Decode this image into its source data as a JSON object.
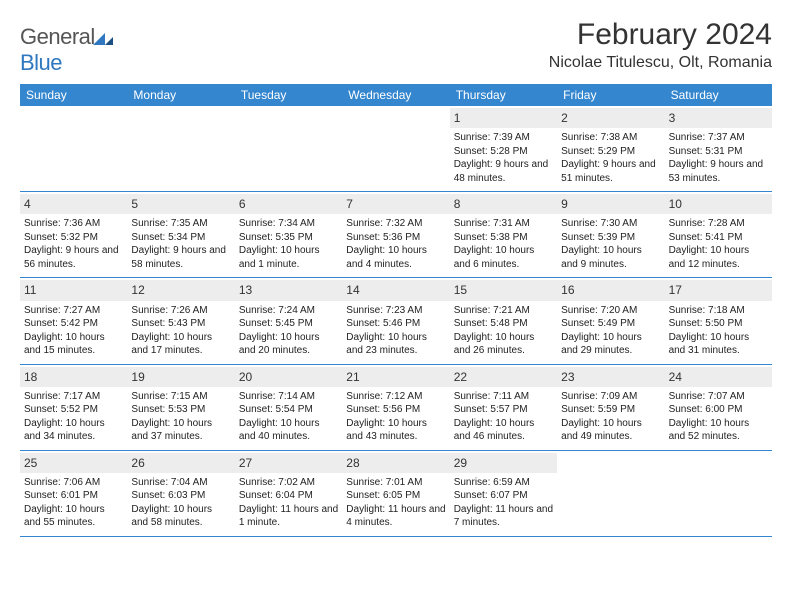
{
  "logo": {
    "part1": "General",
    "part2": "Blue"
  },
  "title": "February 2024",
  "location": "Nicolae Titulescu, Olt, Romania",
  "colors": {
    "header_bg": "#3486cf",
    "header_text": "#ffffff",
    "band_bg": "#ededed",
    "rule": "#3486cf"
  },
  "weekdays": [
    "Sunday",
    "Monday",
    "Tuesday",
    "Wednesday",
    "Thursday",
    "Friday",
    "Saturday"
  ],
  "weeks": [
    [
      null,
      null,
      null,
      null,
      {
        "n": "1",
        "sunrise": "Sunrise: 7:39 AM",
        "sunset": "Sunset: 5:28 PM",
        "daylight": "Daylight: 9 hours and 48 minutes."
      },
      {
        "n": "2",
        "sunrise": "Sunrise: 7:38 AM",
        "sunset": "Sunset: 5:29 PM",
        "daylight": "Daylight: 9 hours and 51 minutes."
      },
      {
        "n": "3",
        "sunrise": "Sunrise: 7:37 AM",
        "sunset": "Sunset: 5:31 PM",
        "daylight": "Daylight: 9 hours and 53 minutes."
      }
    ],
    [
      {
        "n": "4",
        "sunrise": "Sunrise: 7:36 AM",
        "sunset": "Sunset: 5:32 PM",
        "daylight": "Daylight: 9 hours and 56 minutes."
      },
      {
        "n": "5",
        "sunrise": "Sunrise: 7:35 AM",
        "sunset": "Sunset: 5:34 PM",
        "daylight": "Daylight: 9 hours and 58 minutes."
      },
      {
        "n": "6",
        "sunrise": "Sunrise: 7:34 AM",
        "sunset": "Sunset: 5:35 PM",
        "daylight": "Daylight: 10 hours and 1 minute."
      },
      {
        "n": "7",
        "sunrise": "Sunrise: 7:32 AM",
        "sunset": "Sunset: 5:36 PM",
        "daylight": "Daylight: 10 hours and 4 minutes."
      },
      {
        "n": "8",
        "sunrise": "Sunrise: 7:31 AM",
        "sunset": "Sunset: 5:38 PM",
        "daylight": "Daylight: 10 hours and 6 minutes."
      },
      {
        "n": "9",
        "sunrise": "Sunrise: 7:30 AM",
        "sunset": "Sunset: 5:39 PM",
        "daylight": "Daylight: 10 hours and 9 minutes."
      },
      {
        "n": "10",
        "sunrise": "Sunrise: 7:28 AM",
        "sunset": "Sunset: 5:41 PM",
        "daylight": "Daylight: 10 hours and 12 minutes."
      }
    ],
    [
      {
        "n": "11",
        "sunrise": "Sunrise: 7:27 AM",
        "sunset": "Sunset: 5:42 PM",
        "daylight": "Daylight: 10 hours and 15 minutes."
      },
      {
        "n": "12",
        "sunrise": "Sunrise: 7:26 AM",
        "sunset": "Sunset: 5:43 PM",
        "daylight": "Daylight: 10 hours and 17 minutes."
      },
      {
        "n": "13",
        "sunrise": "Sunrise: 7:24 AM",
        "sunset": "Sunset: 5:45 PM",
        "daylight": "Daylight: 10 hours and 20 minutes."
      },
      {
        "n": "14",
        "sunrise": "Sunrise: 7:23 AM",
        "sunset": "Sunset: 5:46 PM",
        "daylight": "Daylight: 10 hours and 23 minutes."
      },
      {
        "n": "15",
        "sunrise": "Sunrise: 7:21 AM",
        "sunset": "Sunset: 5:48 PM",
        "daylight": "Daylight: 10 hours and 26 minutes."
      },
      {
        "n": "16",
        "sunrise": "Sunrise: 7:20 AM",
        "sunset": "Sunset: 5:49 PM",
        "daylight": "Daylight: 10 hours and 29 minutes."
      },
      {
        "n": "17",
        "sunrise": "Sunrise: 7:18 AM",
        "sunset": "Sunset: 5:50 PM",
        "daylight": "Daylight: 10 hours and 31 minutes."
      }
    ],
    [
      {
        "n": "18",
        "sunrise": "Sunrise: 7:17 AM",
        "sunset": "Sunset: 5:52 PM",
        "daylight": "Daylight: 10 hours and 34 minutes."
      },
      {
        "n": "19",
        "sunrise": "Sunrise: 7:15 AM",
        "sunset": "Sunset: 5:53 PM",
        "daylight": "Daylight: 10 hours and 37 minutes."
      },
      {
        "n": "20",
        "sunrise": "Sunrise: 7:14 AM",
        "sunset": "Sunset: 5:54 PM",
        "daylight": "Daylight: 10 hours and 40 minutes."
      },
      {
        "n": "21",
        "sunrise": "Sunrise: 7:12 AM",
        "sunset": "Sunset: 5:56 PM",
        "daylight": "Daylight: 10 hours and 43 minutes."
      },
      {
        "n": "22",
        "sunrise": "Sunrise: 7:11 AM",
        "sunset": "Sunset: 5:57 PM",
        "daylight": "Daylight: 10 hours and 46 minutes."
      },
      {
        "n": "23",
        "sunrise": "Sunrise: 7:09 AM",
        "sunset": "Sunset: 5:59 PM",
        "daylight": "Daylight: 10 hours and 49 minutes."
      },
      {
        "n": "24",
        "sunrise": "Sunrise: 7:07 AM",
        "sunset": "Sunset: 6:00 PM",
        "daylight": "Daylight: 10 hours and 52 minutes."
      }
    ],
    [
      {
        "n": "25",
        "sunrise": "Sunrise: 7:06 AM",
        "sunset": "Sunset: 6:01 PM",
        "daylight": "Daylight: 10 hours and 55 minutes."
      },
      {
        "n": "26",
        "sunrise": "Sunrise: 7:04 AM",
        "sunset": "Sunset: 6:03 PM",
        "daylight": "Daylight: 10 hours and 58 minutes."
      },
      {
        "n": "27",
        "sunrise": "Sunrise: 7:02 AM",
        "sunset": "Sunset: 6:04 PM",
        "daylight": "Daylight: 11 hours and 1 minute."
      },
      {
        "n": "28",
        "sunrise": "Sunrise: 7:01 AM",
        "sunset": "Sunset: 6:05 PM",
        "daylight": "Daylight: 11 hours and 4 minutes."
      },
      {
        "n": "29",
        "sunrise": "Sunrise: 6:59 AM",
        "sunset": "Sunset: 6:07 PM",
        "daylight": "Daylight: 11 hours and 7 minutes."
      },
      null,
      null
    ]
  ]
}
